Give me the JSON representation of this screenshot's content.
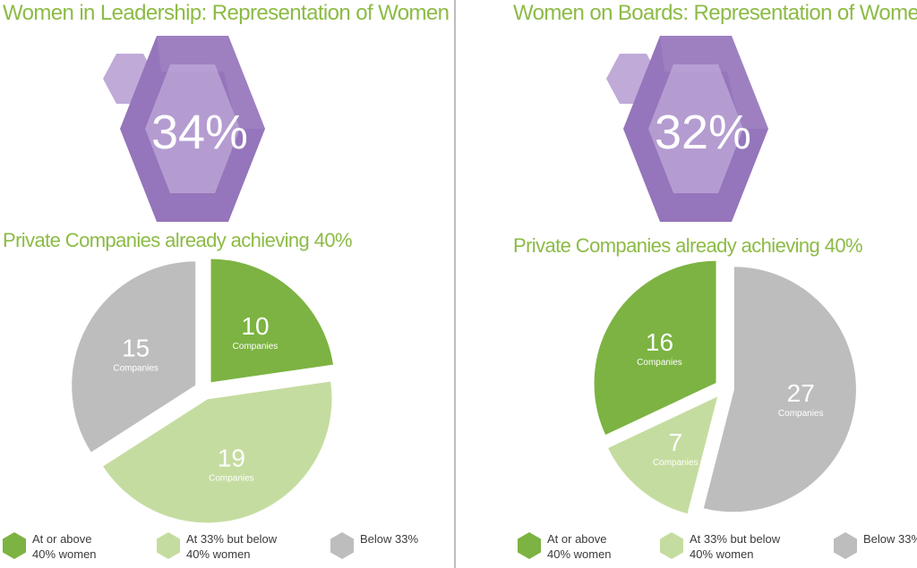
{
  "colors": {
    "title_green": "#8cbb45",
    "purple_dark": "#9575bb",
    "purple_mid": "#a688c6",
    "purple_light": "#bfaad8",
    "at_or_above": "#7cb342",
    "at_33_below_40": "#c5dca0",
    "below_33": "#bdbdbd",
    "label_white": "#ffffff"
  },
  "legend": [
    {
      "key": "at_or_above",
      "label_line1": "At or above",
      "label_line2": "40% women",
      "icon": "hexagon-icon"
    },
    {
      "key": "at_33_below_40",
      "label_line1": "At 33% but below",
      "label_line2": "40% women",
      "icon": "hexagon-icon"
    },
    {
      "key": "below_33",
      "label_line1": "Below 33%",
      "label_line2": "",
      "icon": "hexagon-icon"
    }
  ],
  "panels": [
    {
      "title": "Women in Leadership: Representation of Women",
      "stat": "34%",
      "subtitle": "Private Companies already achieving 40%"
    },
    {
      "title": "Women on Boards: Representation of Women",
      "stat": "32%",
      "subtitle": "Private Companies already achieving 40%"
    }
  ],
  "chart_data": [
    {
      "type": "pie",
      "title": "Private Companies already achieving 40%",
      "unit_label": "Companies",
      "slices": [
        {
          "category": "At or above 40% women",
          "value": 10,
          "color": "#7cb342"
        },
        {
          "category": "At 33% but below 40% women",
          "value": 19,
          "color": "#c5dca0"
        },
        {
          "category": "Below 33%",
          "value": 15,
          "color": "#bdbdbd"
        }
      ]
    },
    {
      "type": "pie",
      "title": "Private Companies already achieving 40%",
      "unit_label": "Companies",
      "slices": [
        {
          "category": "Below 33%",
          "value": 27,
          "color": "#bdbdbd"
        },
        {
          "category": "At 33% but below 40% women",
          "value": 7,
          "color": "#c5dca0"
        },
        {
          "category": "At or above 40% women",
          "value": 16,
          "color": "#7cb342"
        }
      ]
    }
  ]
}
